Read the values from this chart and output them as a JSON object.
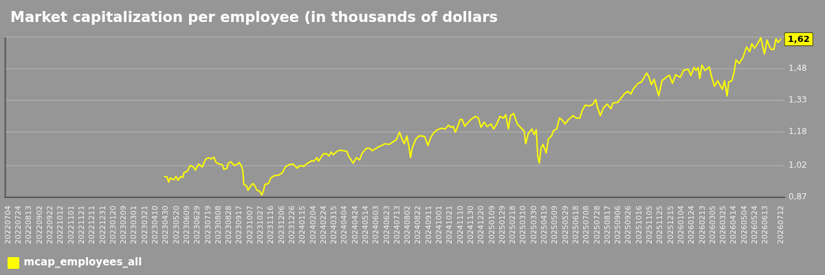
{
  "chart_data": {
    "type": "line",
    "title": "Market capitalization per employee (in thousands of dollars",
    "x": [
      "2023-04-27",
      "2023-05-02",
      "2023-05-05",
      "2023-05-08",
      "2023-05-15",
      "2023-05-19",
      "2023-05-23",
      "2023-05-28",
      "2023-06-01",
      "2023-06-03",
      "2023-06-10",
      "2023-06-15",
      "2023-06-21",
      "2023-06-25",
      "2023-07-01",
      "2023-07-08",
      "2023-07-14",
      "2023-07-20",
      "2023-07-25",
      "2023-07-30",
      "2023-08-03",
      "2023-08-09",
      "2023-08-15",
      "2023-08-18",
      "2023-08-24",
      "2023-08-26",
      "2023-08-31",
      "2023-09-07",
      "2023-09-13",
      "2023-09-16",
      "2023-09-20",
      "2023-09-23",
      "2023-09-25",
      "2023-09-30",
      "2023-10-03",
      "2023-10-07",
      "2023-10-12",
      "2023-10-16",
      "2023-10-20",
      "2023-10-25",
      "2023-10-29",
      "2023-11-01",
      "2023-11-04",
      "2023-11-11",
      "2023-11-15",
      "2023-11-22",
      "2023-11-30",
      "2023-12-07",
      "2023-12-13",
      "2023-12-20",
      "2023-12-28",
      "2024-01-04",
      "2024-01-10",
      "2024-01-17",
      "2024-01-23",
      "2024-02-01",
      "2024-02-05",
      "2024-02-11",
      "2024-02-14",
      "2024-02-23",
      "2024-02-29",
      "2024-03-05",
      "2024-03-09",
      "2024-03-13",
      "2024-03-20",
      "2024-03-26",
      "2024-04-02",
      "2024-04-08",
      "2024-04-11",
      "2024-04-15",
      "2024-04-20",
      "2024-04-26",
      "2024-05-02",
      "2024-05-07",
      "2024-05-15",
      "2024-05-22",
      "2024-05-26",
      "2024-05-31",
      "2024-06-06",
      "2024-06-13",
      "2024-06-19",
      "2024-06-28",
      "2024-07-04",
      "2024-07-11",
      "2024-07-17",
      "2024-07-22",
      "2024-07-26",
      "2024-07-31",
      "2024-08-04",
      "2024-08-07",
      "2024-08-10",
      "2024-08-17",
      "2024-08-23",
      "2024-08-30",
      "2024-09-03",
      "2024-09-09",
      "2024-09-14",
      "2024-09-20",
      "2024-09-27",
      "2024-10-05",
      "2024-10-12",
      "2024-10-18",
      "2024-10-23",
      "2024-10-27",
      "2024-10-31",
      "2024-11-05",
      "2024-11-09",
      "2024-11-13",
      "2024-11-18",
      "2024-11-24",
      "2024-12-01",
      "2024-12-09",
      "2024-12-14",
      "2024-12-19",
      "2024-12-25",
      "2024-12-31",
      "2025-01-07",
      "2025-01-12",
      "2025-01-18",
      "2025-01-24",
      "2025-01-31",
      "2025-02-04",
      "2025-02-09",
      "2025-02-13",
      "2025-02-19",
      "2025-02-26",
      "2025-03-04",
      "2025-03-11",
      "2025-03-14",
      "2025-03-19",
      "2025-03-26",
      "2025-03-30",
      "2025-04-03",
      "2025-04-06",
      "2025-04-09",
      "2025-04-12",
      "2025-04-16",
      "2025-04-22",
      "2025-04-26",
      "2025-05-02",
      "2025-05-06",
      "2025-05-12",
      "2025-05-17",
      "2025-05-21",
      "2025-05-28",
      "2025-06-03",
      "2025-06-12",
      "2025-06-18",
      "2025-06-25",
      "2025-06-29",
      "2025-07-05",
      "2025-07-12",
      "2025-07-19",
      "2025-07-25",
      "2025-07-28",
      "2025-08-03",
      "2025-08-09",
      "2025-08-16",
      "2025-08-23",
      "2025-08-27",
      "2025-09-05",
      "2025-09-11",
      "2025-09-18",
      "2025-09-24",
      "2025-09-30",
      "2025-10-05",
      "2025-10-14",
      "2025-10-20",
      "2025-10-30",
      "2025-11-03",
      "2025-11-08",
      "2025-11-13",
      "2025-11-22",
      "2025-11-28",
      "2025-12-05",
      "2025-12-12",
      "2025-12-18",
      "2025-12-24",
      "2026-01-02",
      "2026-01-08",
      "2026-01-17",
      "2026-01-22",
      "2026-01-28",
      "2026-02-01",
      "2026-02-05",
      "2026-02-08",
      "2026-02-12",
      "2026-02-18",
      "2026-02-26",
      "2026-03-03",
      "2026-03-08",
      "2026-03-14",
      "2026-03-19",
      "2026-03-23",
      "2026-03-27",
      "2026-04-01",
      "2026-04-04",
      "2026-04-10",
      "2026-04-14",
      "2026-04-18",
      "2026-04-24",
      "2026-05-01",
      "2026-05-08",
      "2026-05-14",
      "2026-05-18",
      "2026-05-23",
      "2026-05-29",
      "2026-06-04",
      "2026-06-07",
      "2026-06-11",
      "2026-06-16",
      "2026-06-20",
      "2026-06-24",
      "2026-06-29",
      "2026-07-03",
      "2026-07-07",
      "2026-07-12"
    ],
    "series": [
      {
        "name": "mcap_employees_all",
        "color": "#ffff00",
        "values": [
          0.969,
          0.966,
          0.942,
          0.962,
          0.953,
          0.969,
          0.951,
          0.969,
          0.964,
          0.986,
          0.995,
          1.021,
          1.014,
          0.999,
          1.028,
          1.014,
          1.05,
          1.058,
          1.052,
          1.061,
          1.036,
          1.028,
          1.025,
          1.003,
          1.008,
          1.03,
          1.039,
          1.021,
          1.028,
          1.036,
          1.021,
          0.999,
          0.931,
          0.925,
          0.903,
          0.92,
          0.936,
          0.925,
          0.903,
          0.9,
          0.881,
          0.898,
          0.931,
          0.936,
          0.962,
          0.973,
          0.975,
          0.986,
          1.014,
          1.025,
          1.028,
          1.008,
          1.021,
          1.017,
          1.03,
          1.043,
          1.041,
          1.058,
          1.041,
          1.076,
          1.077,
          1.066,
          1.085,
          1.072,
          1.088,
          1.094,
          1.091,
          1.088,
          1.066,
          1.052,
          1.032,
          1.058,
          1.047,
          1.08,
          1.102,
          1.102,
          1.091,
          1.099,
          1.108,
          1.116,
          1.124,
          1.121,
          1.132,
          1.143,
          1.179,
          1.146,
          1.124,
          1.161,
          1.108,
          1.058,
          1.102,
          1.146,
          1.161,
          1.161,
          1.157,
          1.116,
          1.152,
          1.176,
          1.191,
          1.198,
          1.194,
          1.212,
          1.202,
          1.207,
          1.179,
          1.207,
          1.238,
          1.24,
          1.207,
          1.224,
          1.242,
          1.254,
          1.246,
          1.202,
          1.227,
          1.205,
          1.218,
          1.194,
          1.218,
          1.254,
          1.246,
          1.262,
          1.194,
          1.257,
          1.268,
          1.218,
          1.202,
          1.185,
          1.124,
          1.174,
          1.194,
          1.168,
          1.191,
          1.063,
          1.032,
          1.102,
          1.121,
          1.08,
          1.146,
          1.161,
          1.187,
          1.194,
          1.246,
          1.24,
          1.218,
          1.238,
          1.257,
          1.246,
          1.246,
          1.279,
          1.307,
          1.304,
          1.309,
          1.334,
          1.301,
          1.257,
          1.295,
          1.312,
          1.29,
          1.318,
          1.32,
          1.34,
          1.362,
          1.373,
          1.36,
          1.386,
          1.411,
          1.417,
          1.459,
          1.444,
          1.404,
          1.43,
          1.351,
          1.423,
          1.437,
          1.45,
          1.411,
          1.452,
          1.439,
          1.472,
          1.478,
          1.448,
          1.486,
          1.472,
          1.486,
          1.434,
          1.497,
          1.472,
          1.489,
          1.437,
          1.397,
          1.423,
          1.4,
          1.382,
          1.423,
          1.351,
          1.417,
          1.423,
          1.461,
          1.522,
          1.505,
          1.533,
          1.583,
          1.561,
          1.599,
          1.577,
          1.599,
          1.627,
          1.594,
          1.55,
          1.616,
          1.588,
          1.572,
          1.572,
          1.622,
          1.605,
          1.62
        ]
      }
    ],
    "xlim": [
      "2022-06-27",
      "2026-07-19"
    ],
    "xticks": [
      {
        "value": "2022-07-04",
        "label": "20220704"
      },
      {
        "value": "2022-07-24",
        "label": "20220724"
      },
      {
        "value": "2022-08-13",
        "label": "20220813"
      },
      {
        "value": "2022-09-02",
        "label": "20220902"
      },
      {
        "value": "2022-09-22",
        "label": "20220922"
      },
      {
        "value": "2022-10-12",
        "label": "20221012"
      },
      {
        "value": "2022-11-01",
        "label": "20221101"
      },
      {
        "value": "2022-11-21",
        "label": "20221121"
      },
      {
        "value": "2022-12-11",
        "label": "20221211"
      },
      {
        "value": "2022-12-31",
        "label": "20221231"
      },
      {
        "value": "2023-01-20",
        "label": "20230120"
      },
      {
        "value": "2023-02-09",
        "label": "20230209"
      },
      {
        "value": "2023-03-01",
        "label": "20230301"
      },
      {
        "value": "2023-03-21",
        "label": "20230321"
      },
      {
        "value": "2023-04-10",
        "label": "20230410"
      },
      {
        "value": "2023-04-30",
        "label": "20230430"
      },
      {
        "value": "2023-05-20",
        "label": "20230520"
      },
      {
        "value": "2023-06-09",
        "label": "20230609"
      },
      {
        "value": "2023-06-29",
        "label": "20230629"
      },
      {
        "value": "2023-07-19",
        "label": "20230719"
      },
      {
        "value": "2023-08-08",
        "label": "20230808"
      },
      {
        "value": "2023-08-28",
        "label": "20230828"
      },
      {
        "value": "2023-09-17",
        "label": "20230917"
      },
      {
        "value": "2023-10-07",
        "label": "20231007"
      },
      {
        "value": "2023-10-27",
        "label": "20231027"
      },
      {
        "value": "2023-11-16",
        "label": "20231116"
      },
      {
        "value": "2023-12-06",
        "label": "20231206"
      },
      {
        "value": "2023-12-26",
        "label": "20231226"
      },
      {
        "value": "2024-01-15",
        "label": "20240115"
      },
      {
        "value": "2024-02-04",
        "label": "20240204"
      },
      {
        "value": "2024-02-24",
        "label": "20240224"
      },
      {
        "value": "2024-03-15",
        "label": "20240315"
      },
      {
        "value": "2024-04-04",
        "label": "20240404"
      },
      {
        "value": "2024-04-24",
        "label": "20240424"
      },
      {
        "value": "2024-05-14",
        "label": "20240514"
      },
      {
        "value": "2024-06-03",
        "label": "20240603"
      },
      {
        "value": "2024-06-23",
        "label": "20240623"
      },
      {
        "value": "2024-07-13",
        "label": "20240713"
      },
      {
        "value": "2024-08-02",
        "label": "20240802"
      },
      {
        "value": "2024-08-22",
        "label": "20240822"
      },
      {
        "value": "2024-09-11",
        "label": "20240911"
      },
      {
        "value": "2024-10-01",
        "label": "20241001"
      },
      {
        "value": "2024-10-21",
        "label": "20241021"
      },
      {
        "value": "2024-11-10",
        "label": "20241110"
      },
      {
        "value": "2024-11-30",
        "label": "20241130"
      },
      {
        "value": "2024-12-20",
        "label": "20241220"
      },
      {
        "value": "2025-01-09",
        "label": "20250109"
      },
      {
        "value": "2025-01-29",
        "label": "20250129"
      },
      {
        "value": "2025-02-18",
        "label": "20250218"
      },
      {
        "value": "2025-03-10",
        "label": "20250310"
      },
      {
        "value": "2025-03-30",
        "label": "20250330"
      },
      {
        "value": "2025-04-19",
        "label": "20250419"
      },
      {
        "value": "2025-05-09",
        "label": "20250509"
      },
      {
        "value": "2025-05-29",
        "label": "20250529"
      },
      {
        "value": "2025-06-18",
        "label": "20250618"
      },
      {
        "value": "2025-07-08",
        "label": "20250708"
      },
      {
        "value": "2025-07-28",
        "label": "20250728"
      },
      {
        "value": "2025-08-17",
        "label": "20250817"
      },
      {
        "value": "2025-09-06",
        "label": "20250906"
      },
      {
        "value": "2025-09-26",
        "label": "20250926"
      },
      {
        "value": "2025-10-16",
        "label": "20251016"
      },
      {
        "value": "2025-11-05",
        "label": "20251105"
      },
      {
        "value": "2025-11-25",
        "label": "20251125"
      },
      {
        "value": "2025-12-15",
        "label": "20251215"
      },
      {
        "value": "2026-01-04",
        "label": "20260104"
      },
      {
        "value": "2026-01-24",
        "label": "20260124"
      },
      {
        "value": "2026-02-13",
        "label": "20260213"
      },
      {
        "value": "2026-03-05",
        "label": "20260305"
      },
      {
        "value": "2026-03-25",
        "label": "20260325"
      },
      {
        "value": "2026-04-14",
        "label": "20260414"
      },
      {
        "value": "2026-05-04",
        "label": "20260504"
      },
      {
        "value": "2026-05-24",
        "label": "20260524"
      },
      {
        "value": "2026-06-13",
        "label": "20260613"
      },
      {
        "value": "2026-07-12",
        "label": "20260712"
      }
    ],
    "ylim": [
      0.87,
      1.63
    ],
    "yticks": [
      {
        "value": 0.87,
        "label": "0,87"
      },
      {
        "value": 1.02,
        "label": "1,02"
      },
      {
        "value": 1.18,
        "label": "1,18"
      },
      {
        "value": 1.33,
        "label": "1,33"
      },
      {
        "value": 1.48,
        "label": "1,48"
      },
      {
        "value": 1.63,
        "label": null
      }
    ],
    "grid": "y",
    "legend": "bottom left",
    "annotations": [
      {
        "text": "1,62",
        "x": "2026-07-12",
        "y": 1.62
      }
    ]
  }
}
